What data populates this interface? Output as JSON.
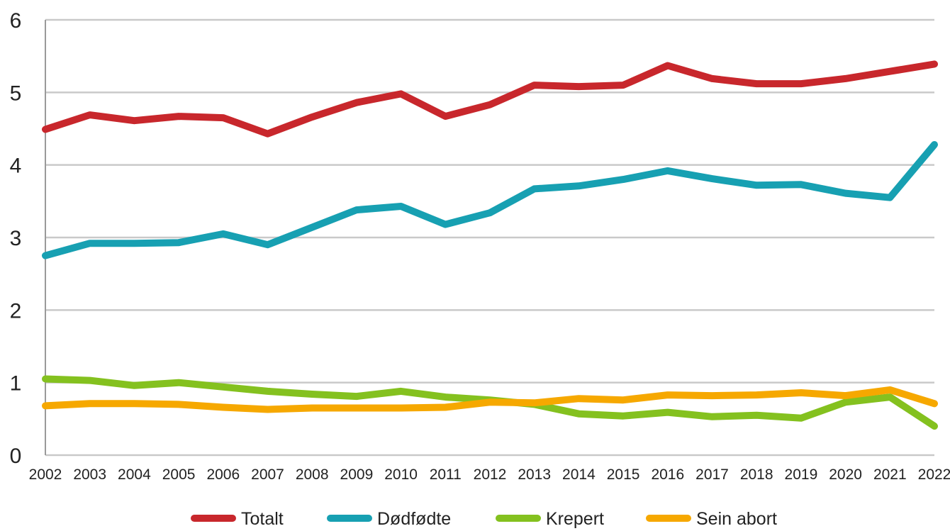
{
  "chart_data": {
    "type": "line",
    "categories": [
      "2002",
      "2003",
      "2004",
      "2005",
      "2006",
      "2007",
      "2008",
      "2009",
      "2010",
      "2011",
      "2012",
      "2013",
      "2014",
      "2015",
      "2016",
      "2017",
      "2018",
      "2019",
      "2020",
      "2021",
      "2022"
    ],
    "series": [
      {
        "name": "Totalt",
        "color": "#c8272c",
        "values": [
          4.49,
          4.69,
          4.61,
          4.67,
          4.65,
          4.43,
          4.66,
          4.86,
          4.98,
          4.67,
          4.83,
          5.1,
          5.08,
          5.1,
          5.37,
          5.19,
          5.12,
          5.12,
          5.19,
          5.29,
          5.39
        ]
      },
      {
        "name": "Dødfødte",
        "color": "#17a0b2",
        "values": [
          2.75,
          2.92,
          2.92,
          2.93,
          3.05,
          2.9,
          3.14,
          3.38,
          3.43,
          3.18,
          3.34,
          3.67,
          3.71,
          3.8,
          3.92,
          3.81,
          3.72,
          3.73,
          3.61,
          3.55,
          4.28
        ]
      },
      {
        "name": "Krepert",
        "color": "#84c11f",
        "values": [
          1.05,
          1.03,
          0.96,
          1.0,
          0.94,
          0.88,
          0.84,
          0.81,
          0.88,
          0.8,
          0.76,
          0.7,
          0.57,
          0.54,
          0.59,
          0.53,
          0.55,
          0.51,
          0.73,
          0.8,
          0.4
        ]
      },
      {
        "name": "Sein abort",
        "color": "#f6a800",
        "values": [
          0.68,
          0.71,
          0.71,
          0.7,
          0.66,
          0.63,
          0.65,
          0.65,
          0.65,
          0.66,
          0.73,
          0.72,
          0.78,
          0.76,
          0.83,
          0.82,
          0.83,
          0.86,
          0.82,
          0.9,
          0.71
        ]
      }
    ],
    "ylim": [
      0,
      6
    ],
    "yticks": [
      "0",
      "1",
      "2",
      "3",
      "4",
      "5",
      "6"
    ],
    "grid": true,
    "legend_position": "bottom"
  }
}
